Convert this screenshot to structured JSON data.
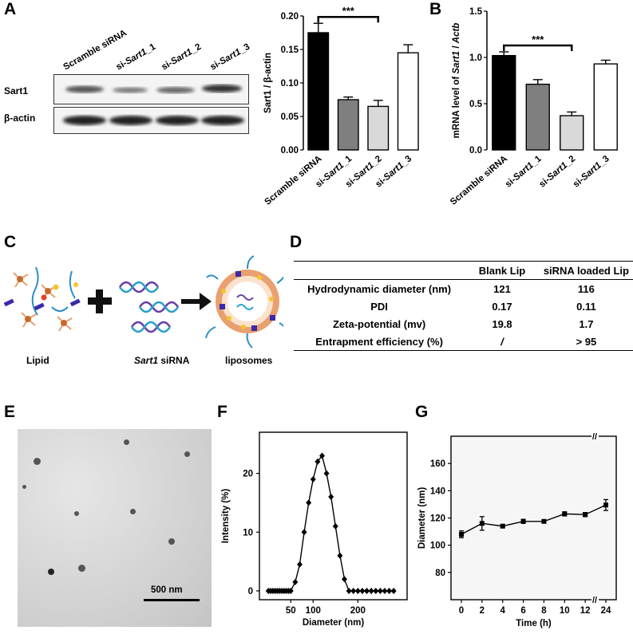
{
  "panel_labels": {
    "a": "A",
    "b": "B",
    "c": "C",
    "d": "D",
    "e": "E",
    "f": "F",
    "g": "G"
  },
  "blot": {
    "lanes": [
      "Scramble siRNA",
      "si-Sart1_1",
      "si-Sart1_2",
      "si-Sart1_3"
    ],
    "lane_gene_prefix": "si-",
    "lane_gene_italic": "Sart1",
    "rows": [
      "Sart1",
      "β-actin"
    ]
  },
  "chart_data": [
    {
      "type": "bar",
      "panel": "A",
      "categories": [
        "Scramble siRNA",
        "si-Sart1_1",
        "si-Sart1_2",
        "si-Sart1_3"
      ],
      "values": [
        0.175,
        0.075,
        0.065,
        0.145
      ],
      "errors": [
        0.014,
        0.004,
        0.009,
        0.012
      ],
      "ylabel": "Sart1 / β-actin",
      "ylim": [
        0,
        0.2
      ],
      "yticks": [
        "0.00",
        "0.05",
        "0.10",
        "0.15",
        "0.20"
      ],
      "significance": "***",
      "bar_colors": [
        "#000000",
        "#7f7f7f",
        "#d9d9d9",
        "#ffffff"
      ]
    },
    {
      "type": "bar",
      "panel": "B",
      "categories": [
        "Scramble siRNA",
        "si-Sart1_1",
        "si-Sart1_2",
        "si-Sart1_3"
      ],
      "values": [
        1.02,
        0.71,
        0.37,
        0.93
      ],
      "errors": [
        0.04,
        0.05,
        0.04,
        0.04
      ],
      "ylabel_prefix": "mRNA level of ",
      "ylabel_gene": "Sart1",
      "ylabel_sep": " / ",
      "ylabel_ref": "Actb",
      "ylim": [
        0,
        1.5
      ],
      "yticks": [
        "0.0",
        "0.5",
        "1.0",
        "1.5"
      ],
      "significance": "***",
      "bar_colors": [
        "#000000",
        "#7f7f7f",
        "#d9d9d9",
        "#ffffff"
      ]
    },
    {
      "type": "line",
      "panel": "F",
      "x": [
        0,
        5,
        10,
        15,
        20,
        25,
        30,
        35,
        40,
        45,
        50,
        60,
        70,
        80,
        90,
        100,
        110,
        120,
        130,
        140,
        150,
        160,
        170,
        180,
        190,
        200,
        210,
        220,
        230,
        240,
        250,
        260,
        270,
        280
      ],
      "y": [
        0,
        0,
        0,
        0,
        0,
        0,
        0,
        0,
        0,
        0,
        0,
        1.5,
        4.5,
        10,
        15,
        19,
        22,
        23,
        20,
        16,
        11,
        6,
        2,
        0,
        0,
        0,
        0,
        0,
        0,
        0,
        0,
        0,
        0,
        0
      ],
      "xlabel": "Diameter (nm)",
      "ylabel": "Intensity (%)",
      "xticks": [
        "50",
        "100",
        "200"
      ],
      "yticks": [
        "0",
        "10",
        "20"
      ],
      "ylim": [
        -1.5,
        27
      ]
    },
    {
      "type": "line",
      "panel": "G",
      "x": [
        "0",
        "2",
        "4",
        "6",
        "8",
        "10",
        "12",
        "24"
      ],
      "y": [
        108,
        116,
        114,
        117.5,
        117.5,
        123,
        122.5,
        129.5
      ],
      "errors": [
        2.5,
        5,
        1,
        1.5,
        1,
        1.5,
        1.5,
        4
      ],
      "xlabel": "Time (h)",
      "ylabel": "Diameter (nm)",
      "xticks": [
        "0",
        "2",
        "4",
        "6",
        "8",
        "10",
        "12",
        "24"
      ],
      "yticks": [
        "80",
        "100",
        "120",
        "140",
        "160"
      ],
      "ylim": [
        60,
        180
      ],
      "axis_break": "//"
    }
  ],
  "schematic": {
    "labels": {
      "lipid": "Lipid",
      "sirna_gene": "Sart1",
      "sirna_suffix": " siRNA",
      "liposomes": "liposomes"
    }
  },
  "table": {
    "headers": [
      "",
      "Blank Lip",
      "siRNA loaded Lip"
    ],
    "rows": [
      {
        "label": "Hydrodynamic diameter (nm)",
        "blank": "121",
        "loaded": "116"
      },
      {
        "label": "PDI",
        "blank": "0.17",
        "loaded": "0.11"
      },
      {
        "label": "Zeta-potential (mv)",
        "blank": "19.8",
        "loaded": "1.7"
      },
      {
        "label": "Entrapment efficiency (%)",
        "blank": "/",
        "loaded": "> 95"
      }
    ]
  },
  "em": {
    "scale_bar": "500 nm"
  }
}
